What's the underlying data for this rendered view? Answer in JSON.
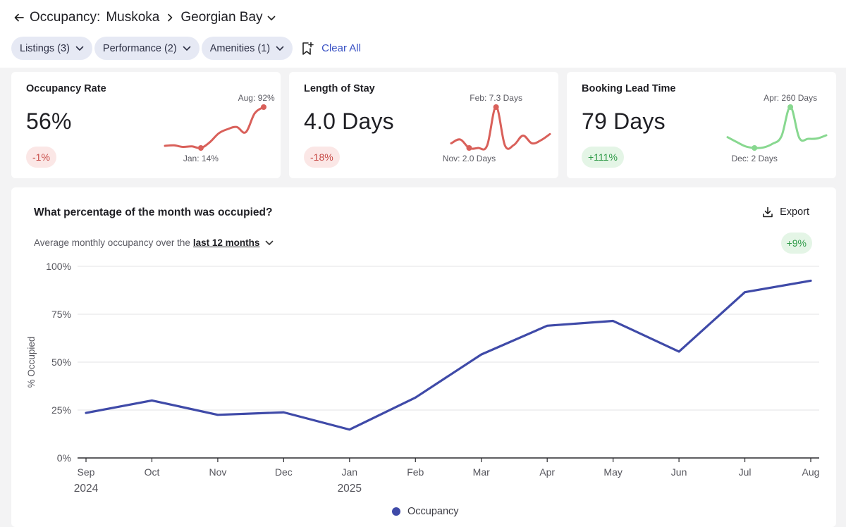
{
  "header": {
    "title": "Occupancy:",
    "breadcrumb": [
      "Muskoka",
      "Georgian Bay"
    ]
  },
  "filters": {
    "pills": [
      "Listings (3)",
      "Performance (2)",
      "Amenities (1)"
    ],
    "clear_label": "Clear All"
  },
  "kpis": [
    {
      "title": "Occupancy Rate",
      "value": "56%",
      "change": "-1%",
      "change_type": "negative",
      "color": "#d9605a",
      "max_label": "Aug: 92%",
      "min_label": "Jan: 14%",
      "series": [
        18,
        19,
        16,
        17,
        14,
        25,
        42,
        50,
        54,
        44,
        80,
        92
      ],
      "min_index": 4,
      "max_index": 11
    },
    {
      "title": "Length of Stay",
      "value": "4.0 Days",
      "change": "-18%",
      "change_type": "negative",
      "color": "#d9605a",
      "max_label": "Feb: 7.3 Days",
      "min_label": "Nov: 2.0 Days",
      "series": [
        2.6,
        3.1,
        2.0,
        2.0,
        2.3,
        7.3,
        2.3,
        2.4,
        3.6,
        2.6,
        3.0,
        3.8
      ],
      "min_index": 2,
      "max_index": 5
    },
    {
      "title": "Booking Lead Time",
      "value": "79 Days",
      "change": "+111%",
      "change_type": "positive",
      "color": "#88d890",
      "max_label": "Apr: 260 Days",
      "min_label": "Dec: 2 Days",
      "series": [
        70,
        40,
        12,
        2,
        5,
        28,
        75,
        260,
        65,
        60,
        62,
        82
      ],
      "min_index": 3,
      "max_index": 7
    }
  ],
  "panel": {
    "title": "What percentage of the month was occupied?",
    "export_label": "Export",
    "subtitle_prefix": "Average monthly occupancy over the",
    "period": "last 12 months",
    "change": "+9%"
  },
  "chart_data": {
    "type": "line",
    "title": "What percentage of the month was occupied?",
    "xlabel": "",
    "ylabel": "% Occupied",
    "ylim": [
      0,
      100
    ],
    "yticks": [
      0,
      25,
      50,
      75,
      100
    ],
    "ytick_labels": [
      "0%",
      "25%",
      "50%",
      "75%",
      "100%"
    ],
    "categories": [
      "Sep",
      "Oct",
      "Nov",
      "Dec",
      "Jan",
      "Feb",
      "Mar",
      "Apr",
      "May",
      "Jun",
      "Jul",
      "Aug"
    ],
    "year_labels": [
      {
        "index": 0,
        "label": "2024"
      },
      {
        "index": 4,
        "label": "2025"
      }
    ],
    "series": [
      {
        "name": "Occupancy",
        "color": "#3f4aa8",
        "values": [
          23.5,
          30,
          22.5,
          23.8,
          14.8,
          31.5,
          54,
          69,
          71.5,
          55.5,
          86.5,
          92.5
        ]
      }
    ],
    "legend": "bottom-center"
  }
}
